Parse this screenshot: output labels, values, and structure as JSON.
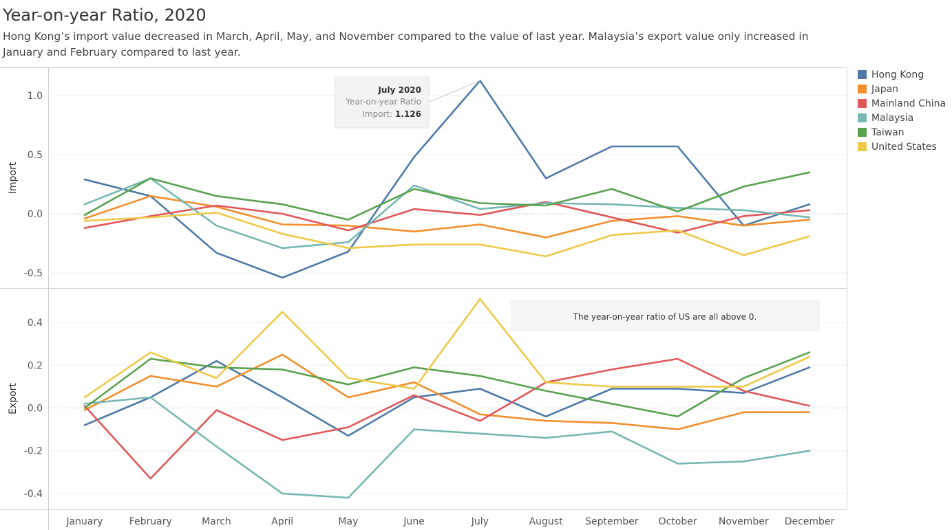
{
  "title": "Year-on-year Ratio, 2020",
  "subtitle": "Hong Kong’s import value decreased in March, April, May, and November compared to the value of last year. Malaysia’s export value only increased in January and February compared to last year.",
  "legend": [
    {
      "name": "Hong Kong",
      "color": "#4e79a7"
    },
    {
      "name": "Japan",
      "color": "#f28e2b"
    },
    {
      "name": "Mainland China",
      "color": "#e15759"
    },
    {
      "name": "Malaysia",
      "color": "#76b7b2"
    },
    {
      "name": "Taiwan",
      "color": "#59a14f"
    },
    {
      "name": "United States",
      "color": "#edc948"
    }
  ],
  "tooltip": {
    "title": "July 2020",
    "line1": "Year-on-year Ratio",
    "label": "Import: ",
    "value": "1.126"
  },
  "annotation": "The year-on-year ratio of US are all above 0.",
  "chart_data": [
    {
      "type": "line",
      "ylabel": "Import",
      "ylim": [
        -0.6,
        1.25
      ],
      "yticks": [
        -0.5,
        0.0,
        0.5,
        1.0
      ],
      "ytick_labels": [
        "-0.5",
        "0.0",
        "0.5",
        "1.0"
      ],
      "categories": [
        "January",
        "February",
        "March",
        "April",
        "May",
        "June",
        "July",
        "August",
        "September",
        "October",
        "November",
        "December"
      ],
      "series": [
        {
          "name": "Hong Kong",
          "color": "#4e79a7",
          "values": [
            0.29,
            0.15,
            -0.33,
            -0.54,
            -0.32,
            0.48,
            1.126,
            0.3,
            0.57,
            0.57,
            -0.1,
            0.08
          ]
        },
        {
          "name": "Japan",
          "color": "#f28e2b",
          "values": [
            -0.04,
            0.15,
            0.06,
            -0.09,
            -0.1,
            -0.15,
            -0.09,
            -0.2,
            -0.06,
            -0.02,
            -0.1,
            -0.05
          ]
        },
        {
          "name": "Mainland China",
          "color": "#e15759",
          "values": [
            -0.12,
            -0.02,
            0.07,
            0.0,
            -0.14,
            0.04,
            -0.01,
            0.1,
            -0.03,
            -0.16,
            -0.02,
            0.03
          ]
        },
        {
          "name": "Malaysia",
          "color": "#76b7b2",
          "values": [
            0.08,
            0.3,
            -0.1,
            -0.29,
            -0.24,
            0.24,
            0.04,
            0.09,
            0.08,
            0.05,
            0.03,
            -0.03
          ]
        },
        {
          "name": "Taiwan",
          "color": "#59a14f",
          "values": [
            -0.01,
            0.3,
            0.15,
            0.08,
            -0.05,
            0.21,
            0.09,
            0.07,
            0.21,
            0.02,
            0.23,
            0.35
          ]
        },
        {
          "name": "United States",
          "color": "#edc948",
          "values": [
            -0.06,
            -0.03,
            0.01,
            -0.17,
            -0.29,
            -0.26,
            -0.26,
            -0.36,
            -0.18,
            -0.14,
            -0.35,
            -0.19
          ]
        }
      ]
    },
    {
      "type": "line",
      "ylabel": "Export",
      "ylim": [
        -0.47,
        0.5
      ],
      "yticks": [
        -0.4,
        -0.2,
        0.0,
        0.2,
        0.4
      ],
      "ytick_labels": [
        "-0.4",
        "-0.2",
        "0.0",
        "0.2",
        "0.4"
      ],
      "categories": [
        "January",
        "February",
        "March",
        "April",
        "May",
        "June",
        "July",
        "August",
        "September",
        "October",
        "November",
        "December"
      ],
      "series": [
        {
          "name": "Hong Kong",
          "color": "#4e79a7",
          "values": [
            -0.08,
            0.05,
            0.22,
            0.05,
            -0.13,
            0.05,
            0.09,
            -0.04,
            0.09,
            0.09,
            0.07,
            0.19
          ]
        },
        {
          "name": "Japan",
          "color": "#f28e2b",
          "values": [
            -0.01,
            0.15,
            0.1,
            0.25,
            0.05,
            0.12,
            -0.03,
            -0.06,
            -0.07,
            -0.1,
            -0.02,
            -0.02
          ]
        },
        {
          "name": "Mainland China",
          "color": "#e15759",
          "values": [
            0.01,
            -0.33,
            -0.01,
            -0.15,
            -0.09,
            0.06,
            -0.06,
            0.12,
            0.18,
            0.23,
            0.08,
            0.01
          ]
        },
        {
          "name": "Malaysia",
          "color": "#76b7b2",
          "values": [
            0.02,
            0.05,
            -0.18,
            -0.4,
            -0.42,
            -0.1,
            -0.12,
            -0.14,
            -0.11,
            -0.26,
            -0.25,
            -0.2
          ]
        },
        {
          "name": "Taiwan",
          "color": "#59a14f",
          "values": [
            0.0,
            0.23,
            0.19,
            0.18,
            0.11,
            0.19,
            0.15,
            0.08,
            0.02,
            -0.04,
            0.14,
            0.26
          ]
        },
        {
          "name": "United States",
          "color": "#edc948",
          "values": [
            0.05,
            0.26,
            0.14,
            0.45,
            0.14,
            0.09,
            0.51,
            0.12,
            0.1,
            0.1,
            0.1,
            0.24
          ]
        }
      ]
    }
  ]
}
